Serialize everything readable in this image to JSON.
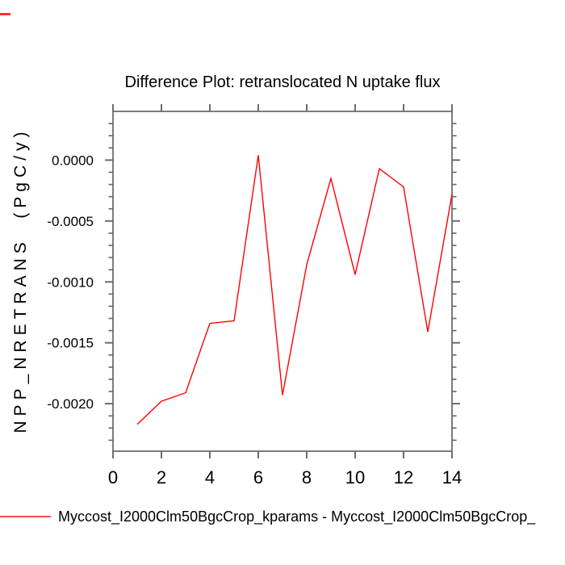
{
  "window": {
    "background": "#ffffff"
  },
  "artifacts": {
    "top_left_clipped_legend_color": "#ff3333"
  },
  "chart_data": {
    "type": "line",
    "title": "Difference Plot: retranslocated N uptake flux",
    "y_axis_title": "NPP_NRETRANS  (PgC/y)",
    "xlabel": "",
    "xlim": [
      0,
      14
    ],
    "ylim": [
      -0.00239,
      0.0004
    ],
    "x_ticks": {
      "values": [
        0,
        2,
        4,
        6,
        8,
        10,
        12,
        14
      ],
      "labels": [
        "0",
        "2",
        "4",
        "6",
        "8",
        "10",
        "12",
        "14"
      ]
    },
    "y_ticks": {
      "values": [
        0.0,
        -0.0005,
        -0.001,
        -0.0015,
        -0.002
      ],
      "labels": [
        "0.0000",
        "-0.0005",
        "-0.0010",
        "-0.0015",
        "-0.0020"
      ]
    },
    "y_minor_step": 0.0001,
    "grid": false,
    "axis_color": "#666666",
    "text_color": "#000000",
    "x": [
      1,
      2,
      3,
      4,
      5,
      6,
      7,
      8,
      9,
      10,
      11,
      12,
      13,
      14
    ],
    "series": [
      {
        "name": "Myccost_I2000Clm50BgcCrop_kparams - Myccost_I2000Clm50BgcCrop_",
        "color": "#ff0000",
        "values": [
          -0.00217,
          -0.00198,
          -0.00191,
          -0.00134,
          -0.00132,
          4e-05,
          -0.00193,
          -0.00086,
          -0.00015,
          -0.00094,
          -7e-05,
          -0.00022,
          -0.00141,
          -0.00028
        ]
      }
    ],
    "legend_position": "bottom-left"
  },
  "legend": {
    "label": "Myccost_I2000Clm50BgcCrop_kparams - Myccost_I2000Clm50BgcCrop_",
    "line_color": "#ff4d4d"
  }
}
